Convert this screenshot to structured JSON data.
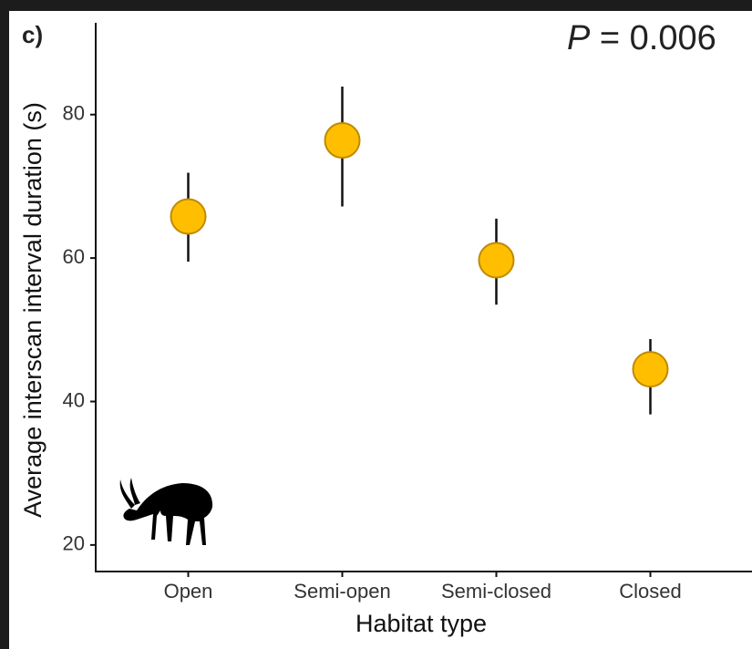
{
  "chart_data": {
    "type": "errorpoint",
    "panel_label": "c)",
    "annotation": {
      "italic": "P",
      "text": "= 0.006"
    },
    "x_label": "Habitat type",
    "y_label": "Average interscan interval duration (s)",
    "categories": [
      "Open",
      "Semi-open",
      "Semi-closed",
      "Closed"
    ],
    "values": [
      65.8,
      76.4,
      59.7,
      44.5
    ],
    "lower": [
      59.5,
      67.2,
      53.5,
      38.2
    ],
    "upper": [
      71.9,
      83.9,
      65.5,
      48.7
    ],
    "color": "#ffbf00",
    "ylim": [
      16.3,
      92.8
    ],
    "yticks": [
      20,
      40,
      60,
      80
    ],
    "grid": false
  }
}
